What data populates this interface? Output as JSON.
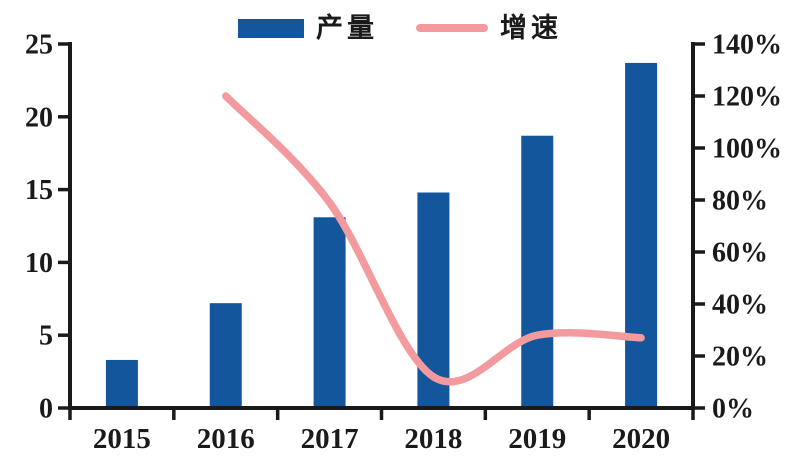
{
  "chart_data": {
    "type": "combo",
    "title": "",
    "categories": [
      "2015",
      "2016",
      "2017",
      "2018",
      "2019",
      "2020"
    ],
    "series": [
      {
        "name": "产量",
        "type": "bar",
        "y_axis": "left",
        "color": "#14569C",
        "values": [
          3.3,
          7.2,
          13.1,
          14.8,
          18.7,
          23.7
        ]
      },
      {
        "name": "增速",
        "type": "line",
        "y_axis": "right",
        "color": "#F29A9E",
        "unit": "%",
        "values": [
          null,
          120,
          79,
          12,
          28,
          27
        ]
      }
    ],
    "left_axis": {
      "min": 0,
      "max": 25,
      "tick_labels": [
        "0",
        "5",
        "10",
        "15",
        "20",
        "25"
      ]
    },
    "right_axis": {
      "min": 0,
      "max": 140,
      "tick_labels": [
        "0%",
        "20%",
        "40%",
        "60%",
        "80%",
        "100%",
        "120%",
        "140%"
      ]
    },
    "x_axis": {
      "tick_labels": [
        "2015",
        "2016",
        "2017",
        "2018",
        "2019",
        "2020"
      ]
    },
    "grid": false,
    "legend_position": "top"
  },
  "colors": {
    "bar": "#14569C",
    "line": "#F29A9E",
    "axis": "#1a1a1a",
    "text": "#1a1a1a",
    "background": "#ffffff"
  }
}
